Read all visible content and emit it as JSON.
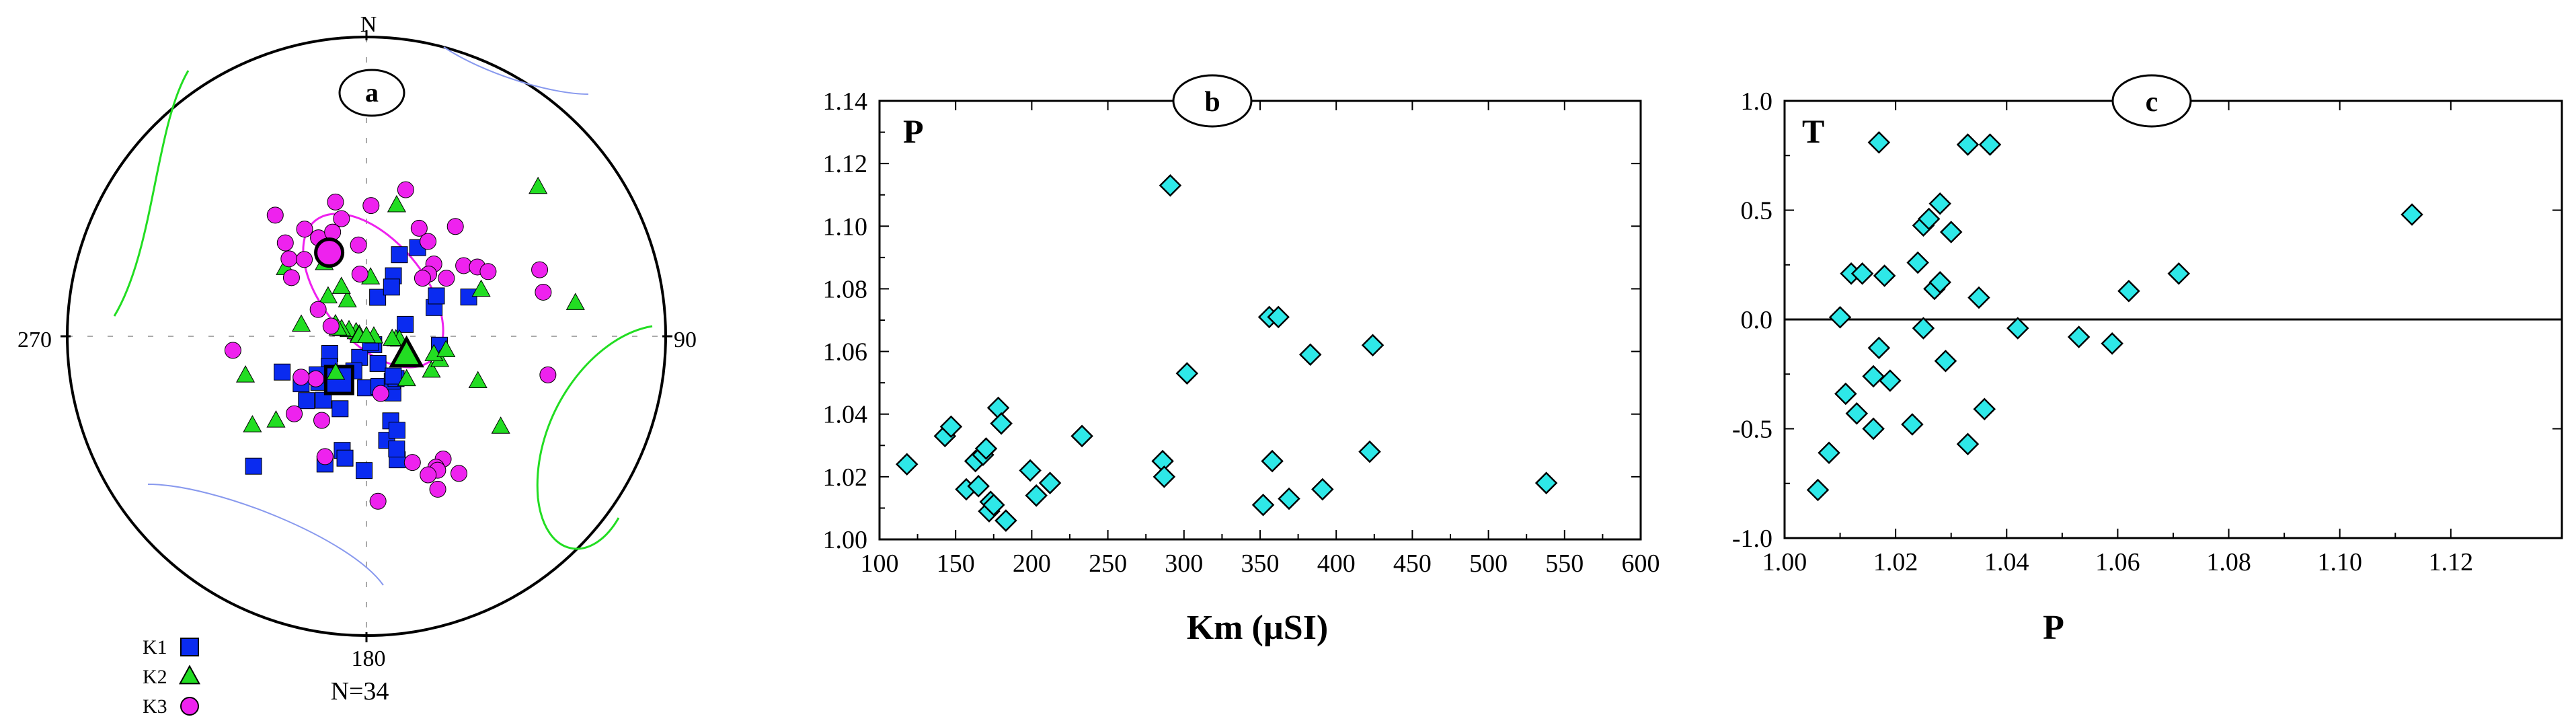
{
  "colors": {
    "k1": "#0a2bf0",
    "k2": "#22dd22",
    "k3": "#ee22ee",
    "diamond": "#2ee8e8",
    "ellipse_k3": "#ee22ee",
    "ellipse_k2": "#22dd22",
    "ellipse_k1": "#8899ee"
  },
  "chart_data": [
    {
      "type": "scatter",
      "subtype": "stereonet-lower-hemisphere",
      "panel_label": "a",
      "north_label": "N",
      "east_label": "90",
      "south_label": "180",
      "west_label": "270",
      "count_label": "N=34",
      "legend": [
        {
          "label": "K1",
          "marker": "square",
          "color": "#0a2bf0"
        },
        {
          "label": "K2",
          "marker": "triangle",
          "color": "#22dd22"
        },
        {
          "label": "K3",
          "marker": "circle",
          "color": "#ee22ee"
        }
      ],
      "legend_position": "bottom-left",
      "series": [
        {
          "name": "K1",
          "marker": "square",
          "points": [
            [
              16,
              79
            ],
            [
              24,
              72
            ],
            [
              27,
              75
            ],
            [
              22,
              66
            ],
            [
              30,
              62
            ],
            [
              73,
              79
            ],
            [
              67,
              70
            ],
            [
              69,
              60
            ],
            [
              60,
              68
            ],
            [
              97,
              70
            ],
            [
              139,
              87
            ],
            [
              157,
              82
            ],
            [
              200,
              69
            ],
            [
              221,
              42
            ],
            [
              245,
              79
            ],
            [
              247,
              65
            ],
            [
              223,
              66
            ],
            [
              214,
              69
            ],
            [
              226,
              72
            ],
            [
              231,
              77
            ],
            [
              234,
              68
            ],
            [
              232,
              73
            ],
            [
              198,
              84
            ],
            [
              200,
              80
            ],
            [
              198,
              53
            ],
            [
              192,
              58
            ],
            [
              181,
              76
            ],
            [
              190,
              56
            ],
            [
              181,
              53
            ],
            [
              166,
              76
            ],
            [
              169,
              61
            ],
            [
              166,
              55
            ],
            [
              165,
              58
            ],
            [
              164,
              66
            ],
            [
              162,
              63
            ],
            [
              155,
              73
            ],
            [
              150,
              76
            ],
            [
              145,
              76
            ],
            [
              146,
              77
            ],
            [
              147,
              88
            ]
          ],
          "mean": [
            212,
            76
          ]
        },
        {
          "name": "K2",
          "marker": "triangle",
          "points": [
            [
              332,
              79
            ],
            [
              333,
              75
            ],
            [
              330,
              67
            ],
            [
              316,
              75
            ],
            [
              310,
              61
            ],
            [
              291,
              87
            ],
            [
              291,
              81
            ],
            [
              289,
              85
            ],
            [
              286,
              83
            ],
            [
              285,
              82
            ],
            [
              283,
              88
            ],
            [
              280,
              72
            ],
            [
              271,
              88
            ],
            [
              252,
              55
            ],
            [
              232,
              50
            ],
            [
              227,
              56
            ],
            [
              220,
              77
            ],
            [
              124,
              45
            ],
            [
              112,
              57
            ],
            [
              118,
              70
            ],
            [
              116,
              76
            ],
            [
              115,
              79
            ],
            [
              108,
              69
            ],
            [
              105,
              71
            ],
            [
              100,
              68
            ],
            [
              96,
              82
            ],
            [
              96,
              81
            ],
            [
              96,
              83
            ],
            [
              92,
              88
            ],
            [
              91,
              90
            ],
            [
              68,
              56
            ],
            [
              49,
              25
            ],
            [
              81,
              30
            ],
            [
              4,
              74
            ],
            [
              13,
              53
            ],
            [
              137,
              74
            ]
          ],
          "mean": [
            115,
            78
          ]
        },
        {
          "name": "K3",
          "marker": "circle",
          "points": [
            [
              2,
              54
            ],
            [
              15,
              48
            ],
            [
              26,
              57
            ],
            [
              33,
              59
            ],
            [
              39,
              51
            ],
            [
              43,
              63
            ],
            [
              45,
              66
            ],
            [
              44,
              68
            ],
            [
              54,
              57
            ],
            [
              54,
              63
            ],
            [
              58,
              54
            ],
            [
              62,
              52
            ],
            [
              69,
              38
            ],
            [
              76,
              39
            ],
            [
              102,
              38
            ],
            [
              146,
              44
            ],
            [
              148,
              50
            ],
            [
              152,
              49
            ],
            [
              152,
              48
            ],
            [
              155,
              43
            ],
            [
              156,
              48
            ],
            [
              160,
              53
            ],
            [
              166,
              74
            ],
            [
              176,
              44
            ],
            [
              199,
              55
            ],
            [
              208,
              64
            ],
            [
              223,
              61
            ],
            [
              230,
              72
            ],
            [
              238,
              69
            ],
            [
              264,
              53
            ],
            [
              286,
              80
            ],
            [
              299,
              75
            ],
            [
              308,
              64
            ],
            [
              315,
              60
            ],
            [
              321,
              63
            ],
            [
              323,
              48
            ],
            [
              330,
              56
            ],
            [
              334,
              60
            ],
            [
              342,
              60
            ],
            [
              347,
              52
            ],
            [
              348,
              57
            ],
            [
              354,
              73
            ],
            [
              336,
              64
            ],
            [
              319,
              56
            ],
            [
              355,
              65
            ]
          ],
          "mean": [
            336,
            65
          ]
        }
      ],
      "confidence_ellipses": [
        "K1",
        "K2",
        "K3"
      ]
    },
    {
      "type": "scatter",
      "panel_label": "b",
      "ylabel": "P",
      "xlabel": "Km (µSI)",
      "xlim": [
        100,
        600
      ],
      "ylim": [
        1.0,
        1.14
      ],
      "xticks": [
        100,
        150,
        200,
        250,
        300,
        350,
        400,
        450,
        500,
        550,
        600
      ],
      "yticks": [
        1.0,
        1.02,
        1.04,
        1.06,
        1.08,
        1.1,
        1.12,
        1.14
      ],
      "ytick_labels": [
        "1.00",
        "1.02",
        "1.04",
        "1.06",
        "1.08",
        "1.10",
        "1.12",
        "1.14"
      ],
      "grid": false,
      "series": [
        {
          "marker": "diamond",
          "x": [
            118,
            143,
            147,
            157,
            163,
            165,
            168,
            170,
            172,
            173,
            175,
            178,
            180,
            183,
            199,
            203,
            212,
            233,
            286,
            287,
            291,
            302,
            352,
            356,
            358,
            362,
            369,
            383,
            391,
            422,
            424,
            538
          ],
          "y": [
            1.024,
            1.033,
            1.036,
            1.016,
            1.025,
            1.017,
            1.027,
            1.029,
            1.009,
            1.012,
            1.011,
            1.042,
            1.037,
            1.006,
            1.022,
            1.014,
            1.018,
            1.033,
            1.025,
            1.02,
            1.113,
            1.053,
            1.011,
            1.071,
            1.025,
            1.071,
            1.013,
            1.059,
            1.016,
            1.028,
            1.062,
            1.018
          ]
        }
      ]
    },
    {
      "type": "scatter",
      "panel_label": "c",
      "ylabel": "T",
      "xlabel": "P",
      "xlim": [
        1.0,
        1.14
      ],
      "ylim": [
        -1.0,
        1.0
      ],
      "xticks": [
        1.0,
        1.02,
        1.04,
        1.06,
        1.08,
        1.1,
        1.12
      ],
      "xtick_labels": [
        "1.00",
        "1.02",
        "1.04",
        "1.06",
        "1.08",
        "1.10",
        "1.12"
      ],
      "yticks": [
        -1.0,
        -0.5,
        0.0,
        0.5,
        1.0
      ],
      "ytick_labels": [
        "-1.0",
        "-0.5",
        "0.0",
        "0.5",
        "1.0"
      ],
      "reference_line_y": 0.0,
      "grid": false,
      "series": [
        {
          "marker": "diamond",
          "x": [
            1.006,
            1.008,
            1.01,
            1.011,
            1.012,
            1.013,
            1.014,
            1.016,
            1.016,
            1.017,
            1.017,
            1.018,
            1.019,
            1.023,
            1.024,
            1.025,
            1.025,
            1.026,
            1.027,
            1.028,
            1.028,
            1.029,
            1.03,
            1.033,
            1.033,
            1.035,
            1.036,
            1.037,
            1.042,
            1.053,
            1.059,
            1.062,
            1.071,
            1.113
          ],
          "y": [
            -0.78,
            -0.61,
            0.01,
            -0.34,
            0.21,
            -0.43,
            0.21,
            -0.26,
            -0.5,
            0.81,
            -0.13,
            0.2,
            -0.28,
            -0.48,
            0.26,
            0.43,
            -0.04,
            0.46,
            0.14,
            0.53,
            0.17,
            -0.19,
            0.4,
            -0.57,
            0.8,
            0.1,
            -0.41,
            0.8,
            -0.04,
            -0.08,
            -0.11,
            0.13,
            0.21,
            0.48
          ]
        }
      ]
    }
  ]
}
